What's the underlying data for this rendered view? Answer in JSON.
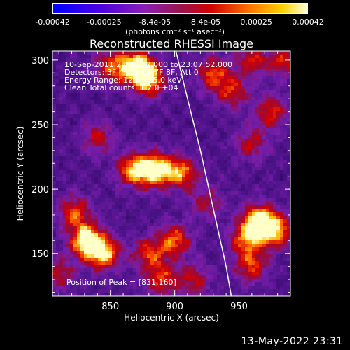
{
  "colorbar": {
    "tick_labels": [
      "-0.00042",
      "-0.00025",
      "-8.4e-05",
      "8.4e-05",
      "0.00025",
      "0.00042"
    ],
    "tick_values": [
      -0.00042,
      -0.00025,
      -8.4e-05,
      8.4e-05,
      0.00025,
      0.00042
    ],
    "range": [
      -0.00042,
      0.00042
    ],
    "units": "(photons cm⁻² s⁻¹ asec⁻²)"
  },
  "chart_data": {
    "type": "heatmap",
    "title": "Reconstructed RHESSI Image",
    "xlabel": "Heliocentric X (arcsec)",
    "ylabel": "Heliocentric Y (arcsec)",
    "xlim": [
      805,
      990
    ],
    "ylim": [
      117,
      307
    ],
    "x_ticks": [
      850,
      900,
      950
    ],
    "y_ticks": [
      150,
      200,
      250,
      300
    ],
    "peak": [
      831,
      160
    ],
    "bright_regions": [
      {
        "x": 832,
        "y": 160,
        "intensity": 1.0
      },
      {
        "x": 845,
        "y": 150,
        "intensity": 0.8
      },
      {
        "x": 885,
        "y": 215,
        "intensity": 0.95
      },
      {
        "x": 868,
        "y": 215,
        "intensity": 0.75
      },
      {
        "x": 905,
        "y": 213,
        "intensity": 0.7
      },
      {
        "x": 822,
        "y": 182,
        "intensity": 0.6
      },
      {
        "x": 900,
        "y": 160,
        "intensity": 0.65
      },
      {
        "x": 880,
        "y": 150,
        "intensity": 0.55
      },
      {
        "x": 965,
        "y": 175,
        "intensity": 0.95
      },
      {
        "x": 978,
        "y": 168,
        "intensity": 0.8
      },
      {
        "x": 955,
        "y": 160,
        "intensity": 0.6
      },
      {
        "x": 960,
        "y": 140,
        "intensity": 0.55
      },
      {
        "x": 975,
        "y": 260,
        "intensity": 0.55
      },
      {
        "x": 960,
        "y": 235,
        "intensity": 0.45
      },
      {
        "x": 870,
        "y": 295,
        "intensity": 0.95
      },
      {
        "x": 880,
        "y": 285,
        "intensity": 0.8
      },
      {
        "x": 850,
        "y": 295,
        "intensity": 0.55
      },
      {
        "x": 930,
        "y": 290,
        "intensity": 0.6
      },
      {
        "x": 945,
        "y": 275,
        "intensity": 0.5
      },
      {
        "x": 810,
        "y": 135,
        "intensity": 0.45
      },
      {
        "x": 890,
        "y": 130,
        "intensity": 0.55
      },
      {
        "x": 925,
        "y": 190,
        "intensity": 0.4
      },
      {
        "x": 915,
        "y": 130,
        "intensity": 0.45
      },
      {
        "x": 960,
        "y": 300,
        "intensity": 0.5
      },
      {
        "x": 840,
        "y": 240,
        "intensity": 0.45
      },
      {
        "x": 985,
        "y": 300,
        "intensity": 0.5
      }
    ],
    "limb_curve": {
      "x": [
        901,
        910,
        920,
        930,
        940,
        944
      ],
      "y": [
        307,
        270,
        230,
        185,
        140,
        117
      ]
    }
  },
  "annotations": {
    "time": "10-Sep-2011 23:01:52.000 to 23:07:52.000",
    "detectors": "Detectors: 3F 4F 5F 6F 7F 8F, Att 0",
    "energy": "Energy Range: 12.0 - 25.0 keV",
    "method": "Clean     Total counts: 1.23E+04",
    "peak_label": "Position of Peak = [831,160]"
  },
  "footer": {
    "date": "13-May-2022 23:31"
  }
}
